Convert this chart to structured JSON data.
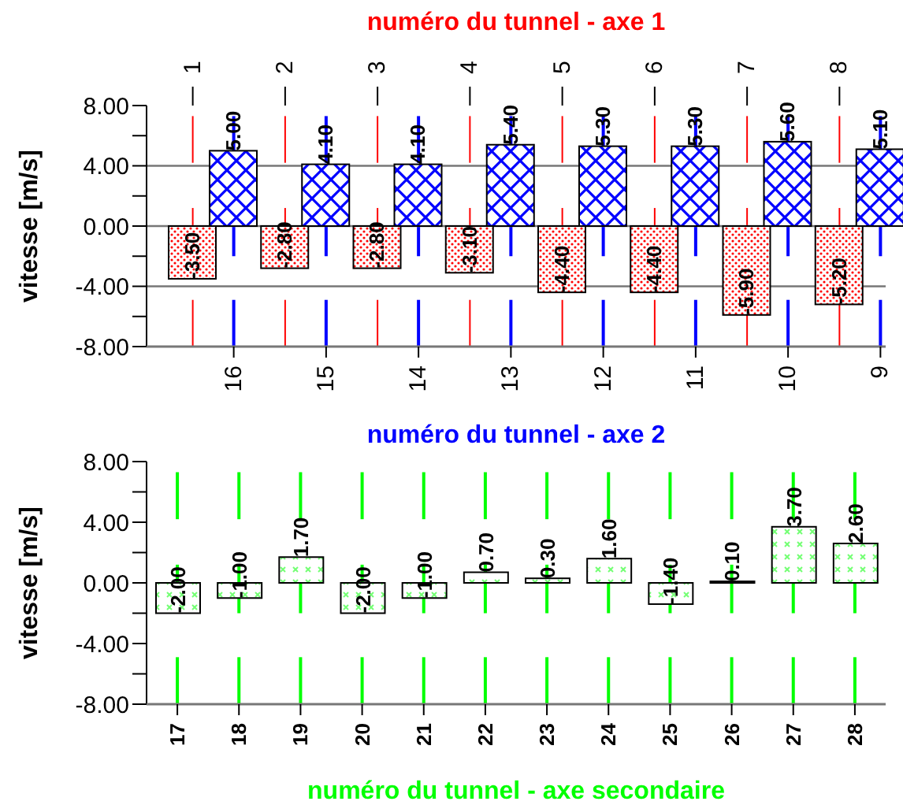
{
  "chart_data": [
    {
      "type": "bar",
      "x2label": "numéro du tunnel - axe 1",
      "xlabel": "numéro du tunnel - axe 2",
      "ylabel": "vitesse [m/s]",
      "categories": [
        "16",
        "15",
        "14",
        "13",
        "12",
        "11",
        "10",
        "9"
      ],
      "x2lim": [
        0.5,
        8.5
      ],
      "x2ticks": [
        1,
        2,
        3,
        4,
        5,
        6,
        7,
        8
      ],
      "series": [
        {
          "color": "#ff0000",
          "axis": "x2",
          "x": [
            1,
            2,
            3,
            4,
            5,
            6,
            7,
            8
          ],
          "values": [
            -3.5,
            -2.8,
            -2.8,
            -3.1,
            -4.4,
            -4.4,
            -5.9,
            -5.2
          ],
          "value_labels": [
            "-3.50",
            "-2.80",
            "-2.80",
            "-3.10",
            "-4.40",
            "-4.40",
            "-5.90",
            "-5.20"
          ]
        },
        {
          "color": "#0000ff",
          "values": [
            5.0,
            4.1,
            4.1,
            5.4,
            5.3,
            5.3,
            5.6,
            5.1
          ],
          "value_labels": [
            "5.00",
            "4.10",
            "4.10",
            "5.40",
            "5.30",
            "5.30",
            "5.60",
            "5.10"
          ]
        }
      ],
      "ylim": [
        -8,
        8
      ],
      "yticks": [
        {
          "value": -8,
          "label": "-8.00"
        },
        {
          "value": -6,
          "label": null
        },
        {
          "value": -4,
          "label": "-4.00"
        },
        {
          "value": -2,
          "label": null
        },
        {
          "value": 0,
          "label": "0.00"
        },
        {
          "value": 2,
          "label": null
        },
        {
          "value": 4,
          "label": "4.00"
        },
        {
          "value": 6,
          "label": null
        },
        {
          "value": 8,
          "label": "8.00"
        }
      ],
      "grid": "y"
    },
    {
      "type": "bar",
      "xlabel": "numéro du tunnel - axe secondaire",
      "ylabel": "vitesse [m/s]",
      "categories": [
        "17",
        "18",
        "19",
        "20",
        "21",
        "22",
        "23",
        "24",
        "25",
        "26",
        "27",
        "28"
      ],
      "series": [
        {
          "color": "#00ff00",
          "values": [
            -2.0,
            -1.0,
            1.7,
            -2.0,
            -1.0,
            0.7,
            0.3,
            1.6,
            -1.4,
            0.1,
            3.7,
            2.6
          ],
          "value_labels": [
            "-2.00",
            "-1.00",
            "1.70",
            "-2.00",
            "-1.00",
            "0.70",
            "0.30",
            "1.60",
            "-1.40",
            "0.10",
            "3.70",
            "2.60"
          ]
        }
      ],
      "ylim": [
        -8,
        8
      ],
      "yticks": [
        {
          "value": -8,
          "label": "-8.00"
        },
        {
          "value": -6,
          "label": null
        },
        {
          "value": -4,
          "label": "-4.00"
        },
        {
          "value": -2,
          "label": null
        },
        {
          "value": 0,
          "label": "0.00"
        },
        {
          "value": 2,
          "label": null
        },
        {
          "value": 4,
          "label": "4.00"
        },
        {
          "value": 6,
          "label": null
        },
        {
          "value": 8,
          "label": "8.00"
        }
      ]
    }
  ]
}
